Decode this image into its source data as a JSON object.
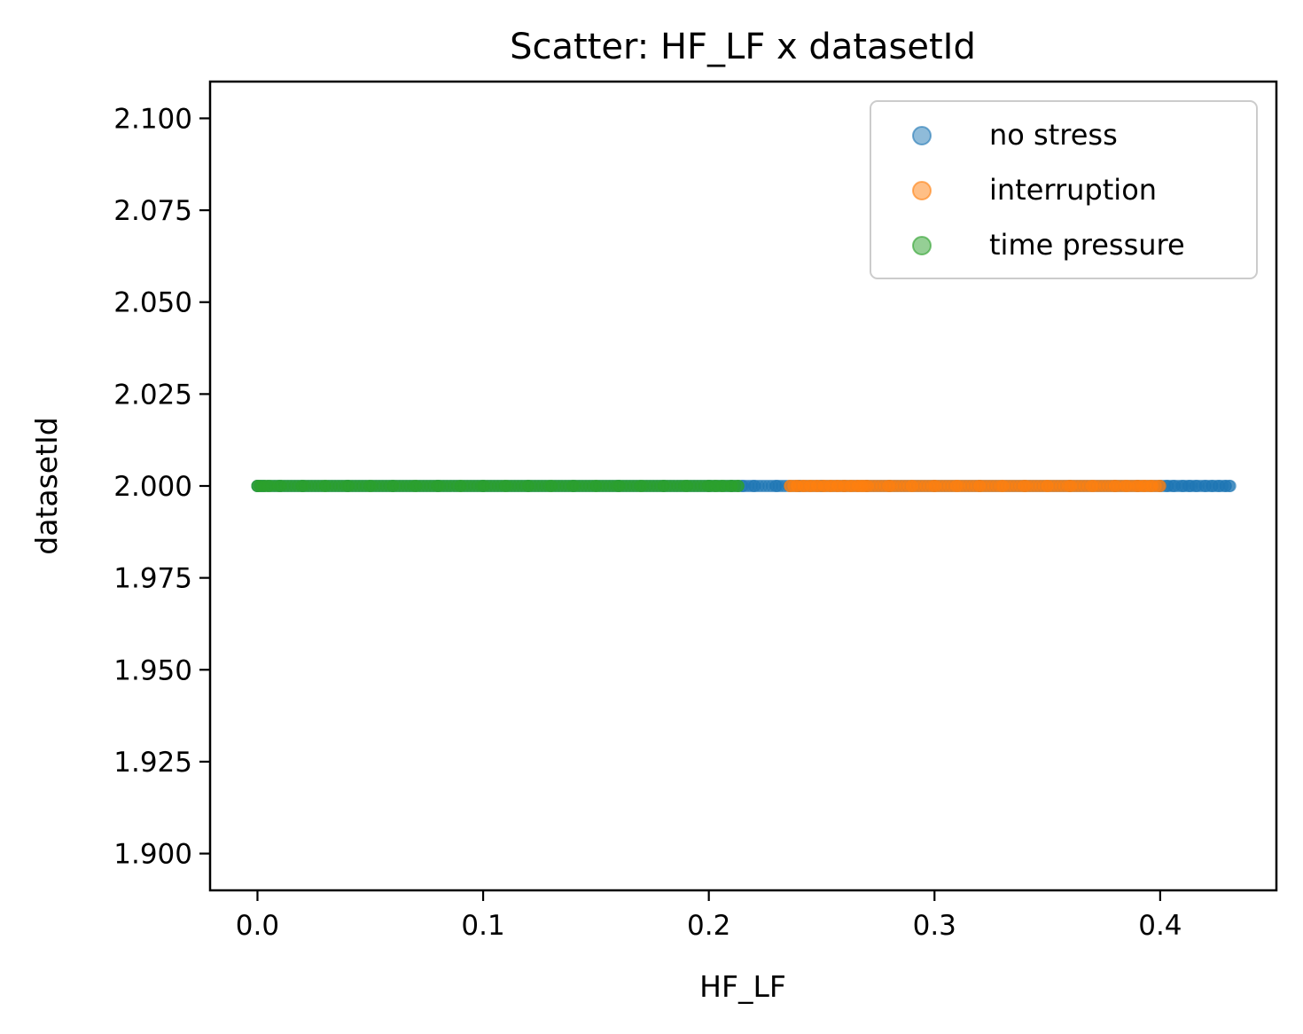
{
  "chart_data": {
    "type": "scatter",
    "title": "Scatter: HF_LF x datasetId",
    "xlabel": "HF_LF",
    "ylabel": "datasetId",
    "xlim": [
      -0.021,
      0.4515
    ],
    "ylim": [
      1.89,
      2.11
    ],
    "xticks": [
      0.0,
      0.1,
      0.2,
      0.3,
      0.4
    ],
    "xtick_labels": [
      "0.0",
      "0.1",
      "0.2",
      "0.3",
      "0.4"
    ],
    "yticks": [
      1.9,
      1.925,
      1.95,
      1.975,
      2.0,
      2.025,
      2.05,
      2.075,
      2.1
    ],
    "ytick_labels": [
      "1.900",
      "1.925",
      "1.950",
      "1.975",
      "2.000",
      "2.025",
      "2.050",
      "2.075",
      "2.100"
    ],
    "grid": false,
    "legend_position": "top-right",
    "series": [
      {
        "name": "no stress",
        "color": "#1f77b4",
        "y": 2.0,
        "x_range": [
          0.0,
          0.431
        ],
        "x": [
          0.0,
          0.002,
          0.01,
          0.02,
          0.04,
          0.06,
          0.08,
          0.1,
          0.12,
          0.14,
          0.16,
          0.18,
          0.2,
          0.21,
          0.215,
          0.22,
          0.23,
          0.24,
          0.25,
          0.26,
          0.27,
          0.28,
          0.3,
          0.32,
          0.34,
          0.36,
          0.38,
          0.39,
          0.4,
          0.403,
          0.406,
          0.41,
          0.413,
          0.416,
          0.42,
          0.423,
          0.426,
          0.429,
          0.431
        ]
      },
      {
        "name": "interruption",
        "color": "#ff7f0e",
        "y": 2.0,
        "x_range": [
          0.236,
          0.4
        ],
        "x": [
          0.236,
          0.239,
          0.242,
          0.245,
          0.248,
          0.251,
          0.254,
          0.257,
          0.26,
          0.263,
          0.266,
          0.268,
          0.27,
          0.28,
          0.29,
          0.3,
          0.31,
          0.32,
          0.33,
          0.34,
          0.35,
          0.36,
          0.37,
          0.38,
          0.385,
          0.39,
          0.393,
          0.396,
          0.4
        ]
      },
      {
        "name": "time pressure",
        "color": "#2ca02c",
        "y": 2.0,
        "x_range": [
          0.0,
          0.213
        ],
        "x": [
          0.0,
          0.001,
          0.003,
          0.005,
          0.01,
          0.02,
          0.03,
          0.04,
          0.05,
          0.06,
          0.07,
          0.08,
          0.09,
          0.1,
          0.11,
          0.12,
          0.13,
          0.14,
          0.15,
          0.16,
          0.17,
          0.18,
          0.19,
          0.2,
          0.203,
          0.206,
          0.21,
          0.213
        ]
      }
    ]
  }
}
